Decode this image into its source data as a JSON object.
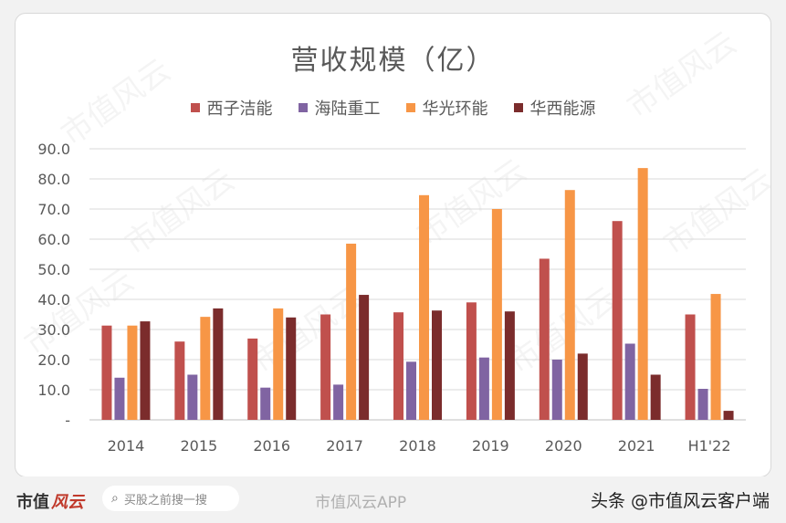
{
  "chart_data": {
    "type": "bar",
    "title": "营收规模（亿）",
    "categories": [
      "2014",
      "2015",
      "2016",
      "2017",
      "2018",
      "2019",
      "2020",
      "2021",
      "H1'22"
    ],
    "series": [
      {
        "name": "西子洁能",
        "color": "#c0504d",
        "values": [
          31.3,
          26.0,
          27.0,
          35.0,
          35.7,
          39.0,
          53.5,
          66.0,
          35.0
        ]
      },
      {
        "name": "海陆重工",
        "color": "#8064a2",
        "values": [
          14.0,
          15.0,
          10.7,
          11.7,
          19.3,
          20.7,
          20.0,
          25.3,
          10.3
        ]
      },
      {
        "name": "华光环能",
        "color": "#f79646",
        "values": [
          31.3,
          34.2,
          37.0,
          58.5,
          74.6,
          70.0,
          76.3,
          83.6,
          41.8
        ]
      },
      {
        "name": "华西能源",
        "color": "#7b2c2c",
        "values": [
          32.7,
          37.0,
          34.0,
          41.5,
          36.3,
          36.0,
          22.0,
          15.0,
          3.0
        ]
      }
    ],
    "ylim": [
      0,
      90
    ],
    "yticks": [
      "-",
      "10.0",
      "20.0",
      "30.0",
      "40.0",
      "50.0",
      "60.0",
      "70.0",
      "80.0",
      "90.0"
    ],
    "grid": true,
    "legend_position": "top"
  },
  "watermark": "市值风云",
  "footer": {
    "brand": "市值",
    "brand_seal": "风云",
    "search_placeholder": "买股之前搜一搜",
    "weibo": "市值风云APP",
    "credit": "头条 @市值风云客户端"
  }
}
